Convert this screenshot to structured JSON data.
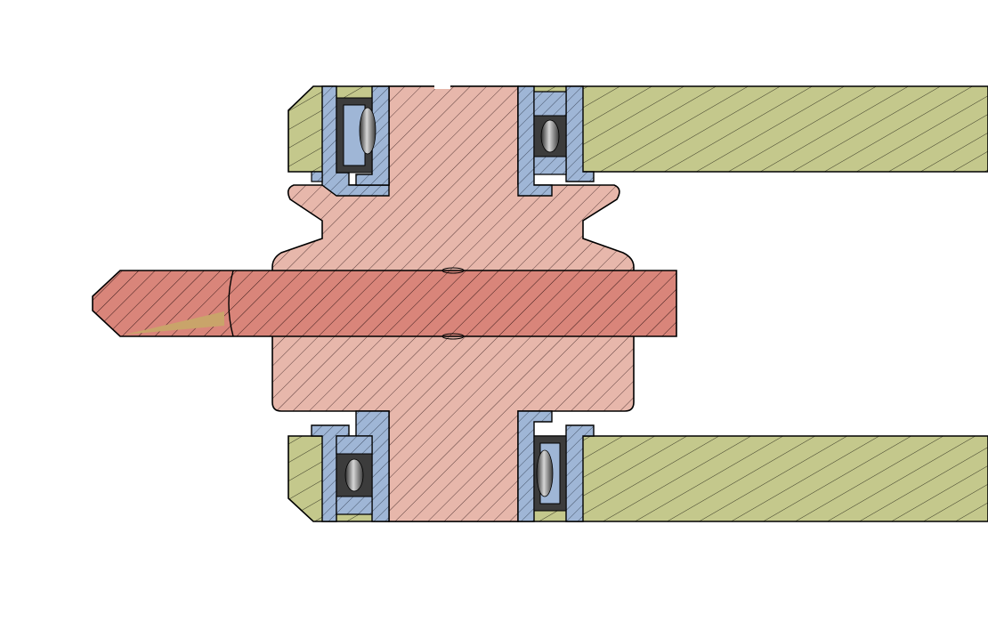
{
  "diagram": {
    "kind": "mechanical cross-section",
    "colors": {
      "background": "#ffffff",
      "frame": "#c4c88c",
      "hub": "#e7b7ab",
      "shaft": "#d9857a",
      "bearing": "#9fb6d6",
      "ball_dark": "#3c3c3c",
      "ball_light": "#bcbcbc",
      "screw_tip": "#c9a46a",
      "outline": "#000000",
      "hatch": "#1a1a1a"
    },
    "parts": [
      "frame-top",
      "frame-bottom",
      "hub-pulley",
      "shaft",
      "bearing-top-left",
      "bearing-top-right",
      "bearing-bottom-left",
      "bearing-bottom-right"
    ]
  }
}
